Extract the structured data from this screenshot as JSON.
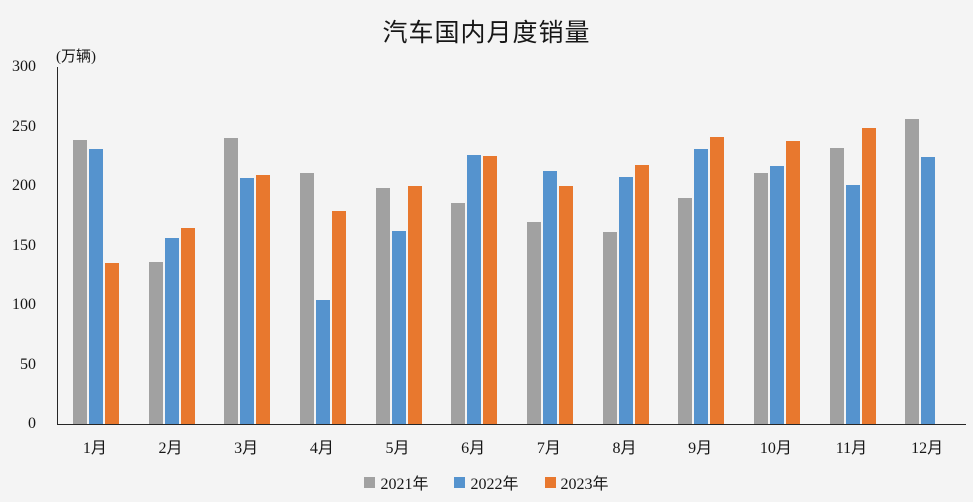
{
  "chart_data": {
    "type": "bar",
    "title": "汽车国内月度销量",
    "unit_label": "(万辆)",
    "categories": [
      "1月",
      "2月",
      "3月",
      "4月",
      "5月",
      "6月",
      "7月",
      "8月",
      "9月",
      "10月",
      "11月",
      "12月"
    ],
    "series": [
      {
        "name": "2021年",
        "color": "#a1a1a1",
        "values": [
          239,
          136,
          240,
          211,
          198,
          186,
          170,
          161,
          190,
          211,
          232,
          256
        ]
      },
      {
        "name": "2022年",
        "color": "#5593ce",
        "values": [
          231,
          156,
          207,
          104,
          162,
          226,
          213,
          208,
          231,
          217,
          201,
          224
        ]
      },
      {
        "name": "2023年",
        "color": "#e8782e",
        "values": [
          135,
          165,
          209,
          179,
          200,
          225,
          200,
          218,
          241,
          238,
          249,
          null
        ]
      }
    ],
    "ylim": [
      0,
      300
    ],
    "ytick_step": 50,
    "grid": false,
    "legend_position": "bottom",
    "background_color": "#f4f4f4",
    "axis_color": "#262626"
  }
}
